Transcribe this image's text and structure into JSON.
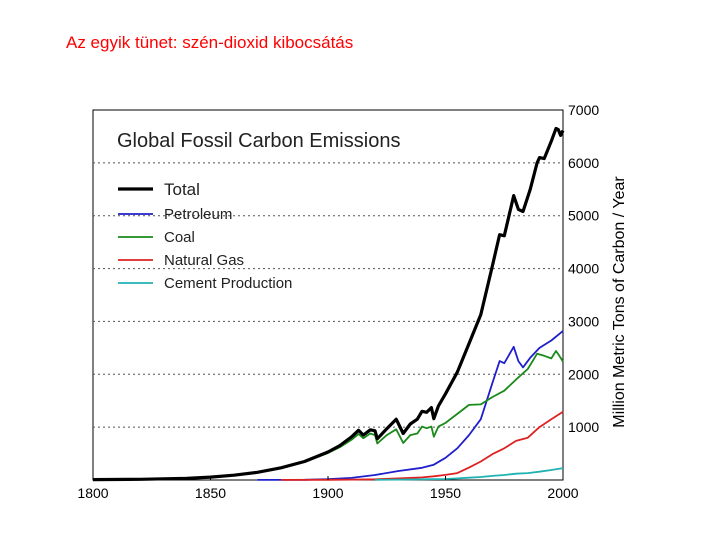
{
  "slide": {
    "title": "Az egyik tünet: szén-dioxid kibocsátás"
  },
  "chart_data": {
    "type": "line",
    "title": "Global Fossil Carbon Emissions",
    "xlabel": "",
    "ylabel": "Million Metric Tons of Carbon / Year",
    "xlim": [
      1800,
      2000
    ],
    "ylim": [
      0,
      7000
    ],
    "x_ticks": [
      "1800",
      "1850",
      "1900",
      "1950",
      "2000"
    ],
    "y_ticks": [
      "1000",
      "2000",
      "3000",
      "4000",
      "5000",
      "6000",
      "7000"
    ],
    "grid": "horizontal-dotted",
    "legend_position": "upper-left",
    "series": [
      {
        "name": "Total",
        "color": "#000000",
        "points": [
          [
            1800,
            8
          ],
          [
            1820,
            14
          ],
          [
            1840,
            33
          ],
          [
            1850,
            54
          ],
          [
            1860,
            90
          ],
          [
            1870,
            145
          ],
          [
            1880,
            230
          ],
          [
            1890,
            350
          ],
          [
            1900,
            530
          ],
          [
            1905,
            650
          ],
          [
            1910,
            815
          ],
          [
            1913,
            940
          ],
          [
            1915,
            850
          ],
          [
            1918,
            950
          ],
          [
            1920,
            930
          ],
          [
            1921,
            780
          ],
          [
            1925,
            970
          ],
          [
            1929,
            1150
          ],
          [
            1932,
            880
          ],
          [
            1935,
            1060
          ],
          [
            1938,
            1150
          ],
          [
            1940,
            1300
          ],
          [
            1942,
            1280
          ],
          [
            1944,
            1370
          ],
          [
            1945,
            1160
          ],
          [
            1947,
            1400
          ],
          [
            1950,
            1630
          ],
          [
            1955,
            2040
          ],
          [
            1960,
            2580
          ],
          [
            1965,
            3130
          ],
          [
            1970,
            4060
          ],
          [
            1973,
            4640
          ],
          [
            1975,
            4620
          ],
          [
            1979,
            5380
          ],
          [
            1981,
            5120
          ],
          [
            1983,
            5080
          ],
          [
            1986,
            5490
          ],
          [
            1989,
            6000
          ],
          [
            1990,
            6100
          ],
          [
            1992,
            6080
          ],
          [
            1995,
            6410
          ],
          [
            1997,
            6650
          ],
          [
            1998,
            6630
          ],
          [
            1999,
            6520
          ],
          [
            2000,
            6610
          ]
        ]
      },
      {
        "name": "Petroleum",
        "color": "#1f1fcc",
        "points": [
          [
            1870,
            1
          ],
          [
            1890,
            4
          ],
          [
            1900,
            15
          ],
          [
            1910,
            40
          ],
          [
            1920,
            95
          ],
          [
            1930,
            170
          ],
          [
            1940,
            230
          ],
          [
            1945,
            290
          ],
          [
            1950,
            420
          ],
          [
            1955,
            600
          ],
          [
            1960,
            850
          ],
          [
            1965,
            1150
          ],
          [
            1970,
            1840
          ],
          [
            1973,
            2250
          ],
          [
            1975,
            2210
          ],
          [
            1979,
            2520
          ],
          [
            1981,
            2250
          ],
          [
            1983,
            2130
          ],
          [
            1986,
            2310
          ],
          [
            1990,
            2500
          ],
          [
            1995,
            2640
          ],
          [
            2000,
            2820
          ]
        ]
      },
      {
        "name": "Coal",
        "color": "#1a8a1a",
        "points": [
          [
            1800,
            8
          ],
          [
            1820,
            14
          ],
          [
            1840,
            33
          ],
          [
            1850,
            54
          ],
          [
            1860,
            90
          ],
          [
            1870,
            144
          ],
          [
            1880,
            225
          ],
          [
            1890,
            340
          ],
          [
            1900,
            510
          ],
          [
            1905,
            620
          ],
          [
            1910,
            760
          ],
          [
            1913,
            870
          ],
          [
            1915,
            790
          ],
          [
            1918,
            880
          ],
          [
            1920,
            850
          ],
          [
            1921,
            690
          ],
          [
            1925,
            850
          ],
          [
            1929,
            960
          ],
          [
            1932,
            700
          ],
          [
            1935,
            850
          ],
          [
            1938,
            880
          ],
          [
            1940,
            1010
          ],
          [
            1942,
            980
          ],
          [
            1944,
            1010
          ],
          [
            1945,
            820
          ],
          [
            1947,
            1010
          ],
          [
            1950,
            1080
          ],
          [
            1955,
            1250
          ],
          [
            1960,
            1420
          ],
          [
            1965,
            1430
          ],
          [
            1970,
            1570
          ],
          [
            1975,
            1690
          ],
          [
            1980,
            1900
          ],
          [
            1985,
            2100
          ],
          [
            1989,
            2390
          ],
          [
            1992,
            2350
          ],
          [
            1995,
            2300
          ],
          [
            1997,
            2440
          ],
          [
            1998,
            2380
          ],
          [
            2000,
            2240
          ]
        ]
      },
      {
        "name": "Natural Gas",
        "color": "#dd2222",
        "points": [
          [
            1880,
            1
          ],
          [
            1900,
            3
          ],
          [
            1910,
            8
          ],
          [
            1920,
            14
          ],
          [
            1930,
            30
          ],
          [
            1940,
            50
          ],
          [
            1945,
            70
          ],
          [
            1950,
            97
          ],
          [
            1955,
            130
          ],
          [
            1960,
            235
          ],
          [
            1965,
            350
          ],
          [
            1970,
            490
          ],
          [
            1975,
            600
          ],
          [
            1980,
            740
          ],
          [
            1985,
            800
          ],
          [
            1990,
            1000
          ],
          [
            1995,
            1150
          ],
          [
            2000,
            1290
          ]
        ]
      },
      {
        "name": "Cement Production",
        "color": "#20b2b2",
        "points": [
          [
            1920,
            3
          ],
          [
            1930,
            8
          ],
          [
            1940,
            14
          ],
          [
            1950,
            18
          ],
          [
            1955,
            30
          ],
          [
            1960,
            43
          ],
          [
            1965,
            57
          ],
          [
            1970,
            78
          ],
          [
            1975,
            95
          ],
          [
            1980,
            120
          ],
          [
            1985,
            130
          ],
          [
            1990,
            157
          ],
          [
            1995,
            190
          ],
          [
            2000,
            225
          ]
        ]
      }
    ]
  }
}
